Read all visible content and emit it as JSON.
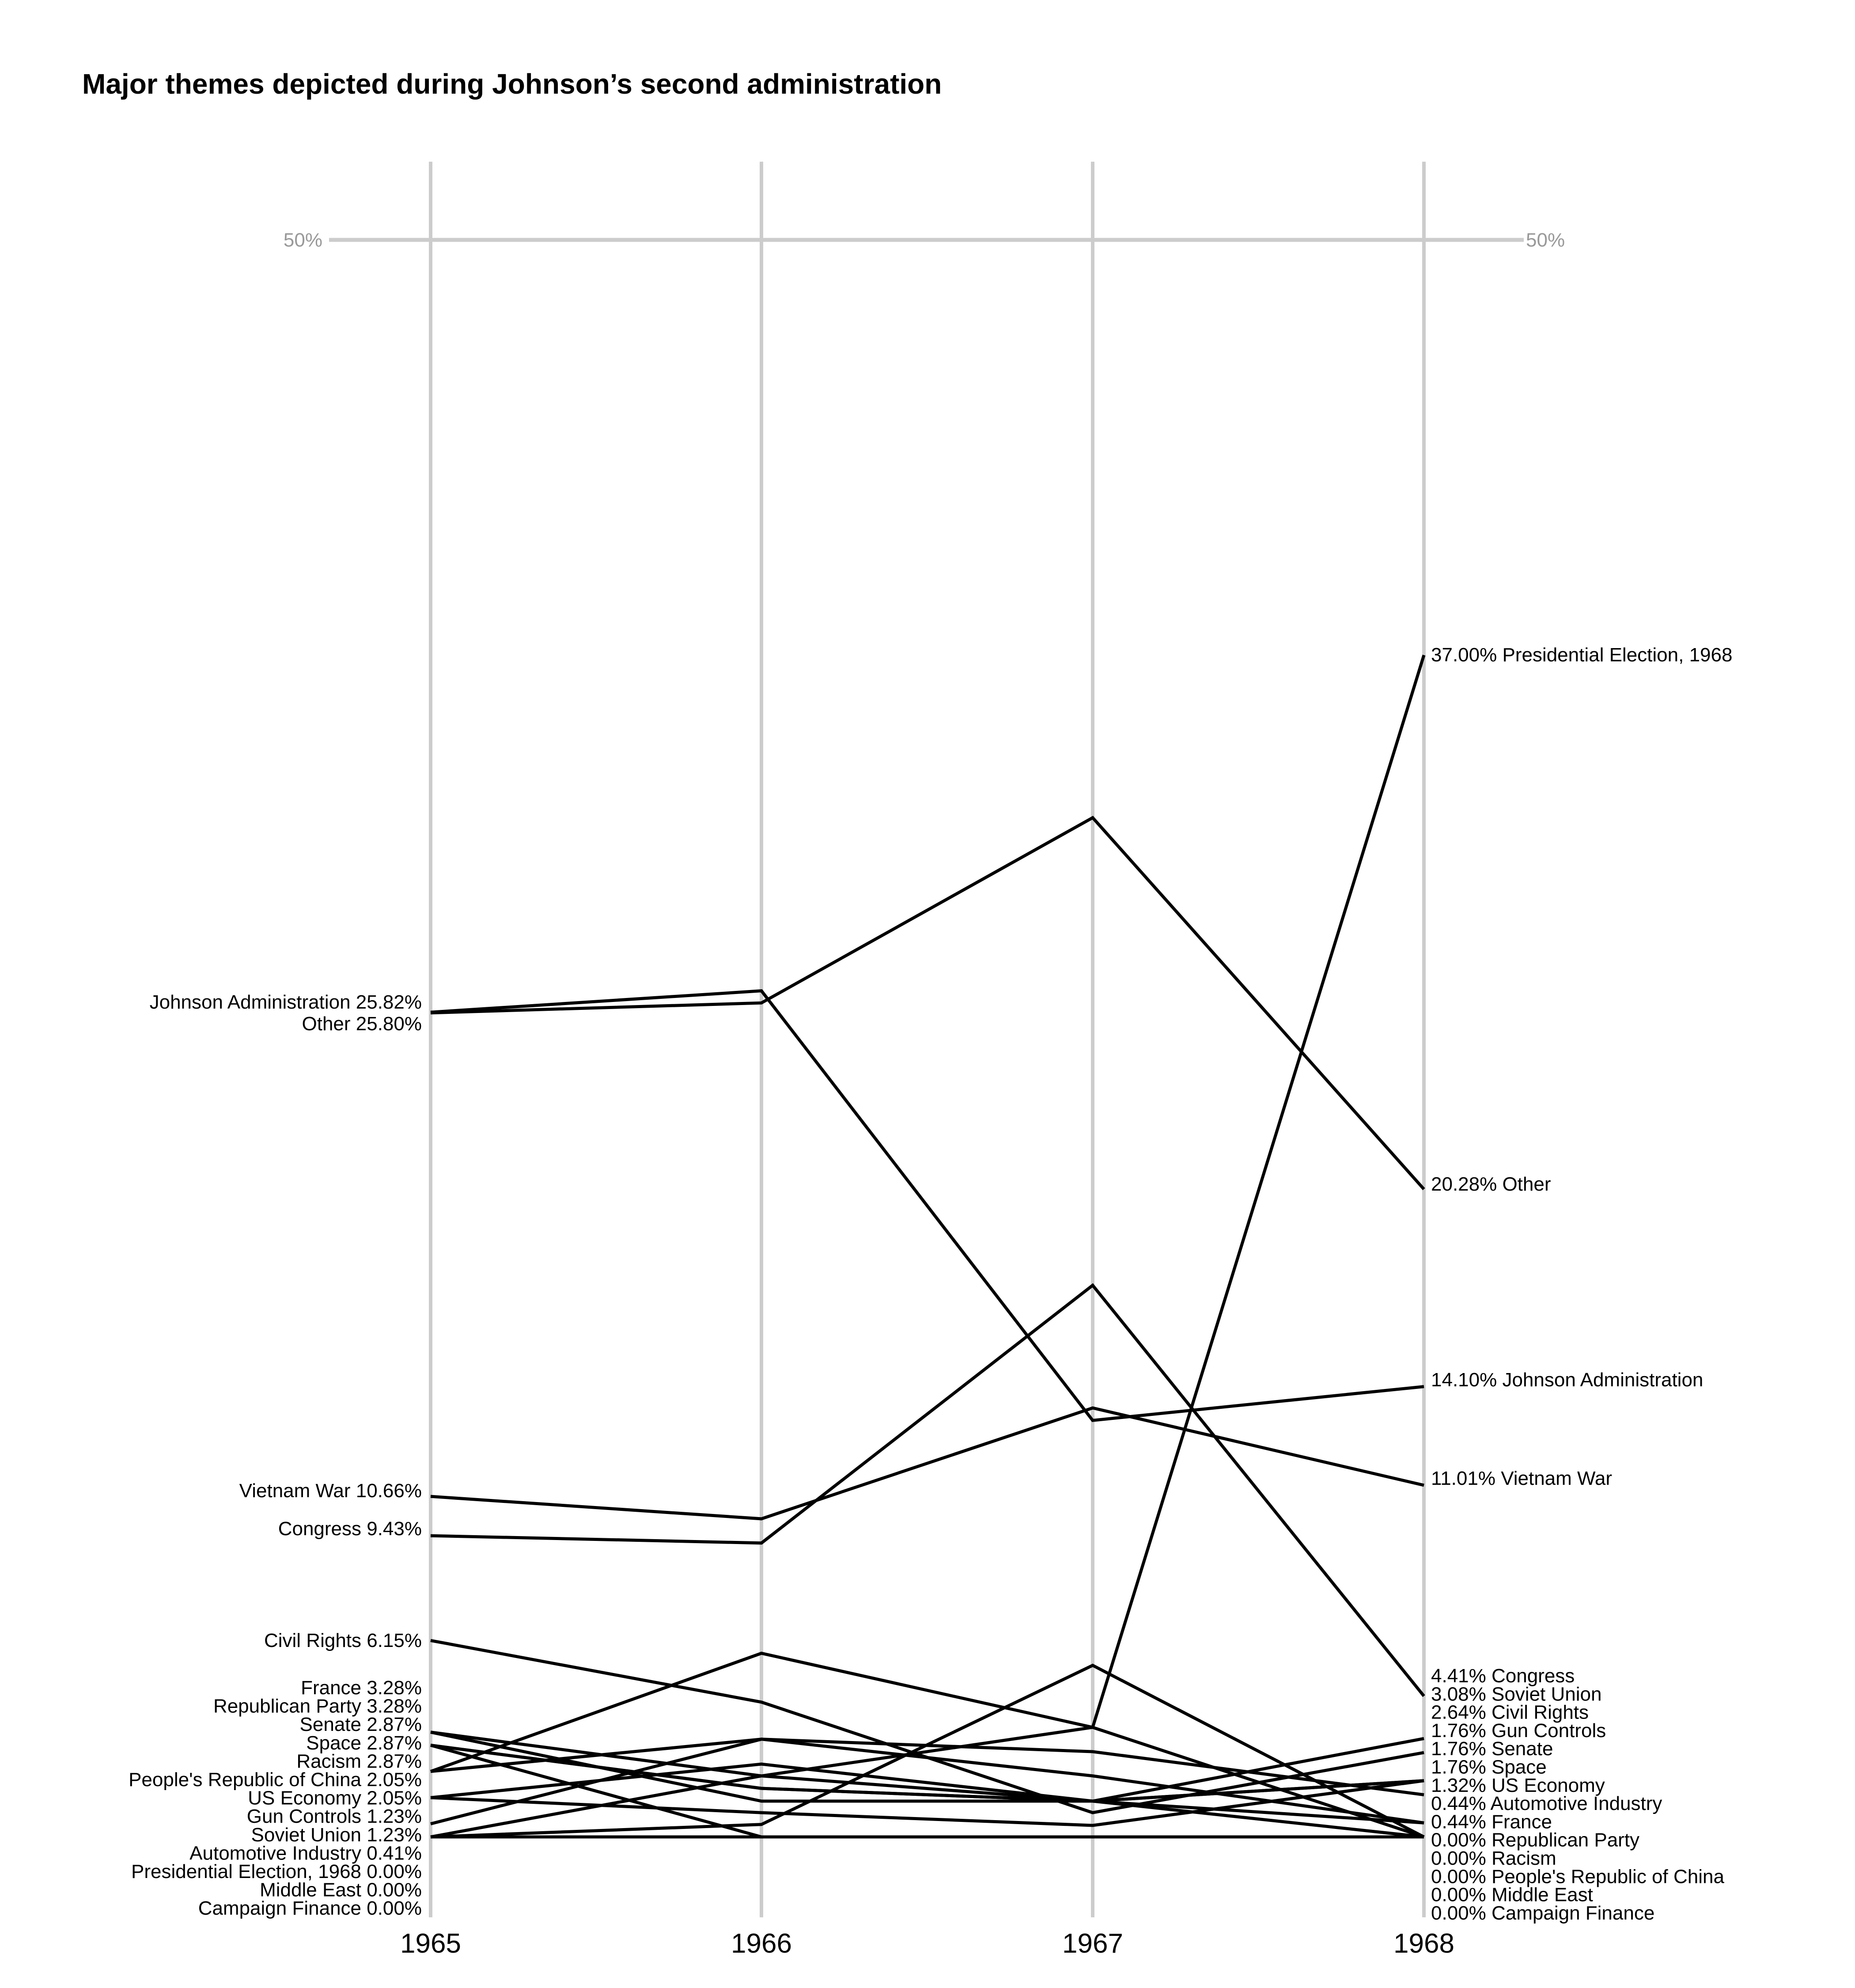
{
  "title": "Major themes depicted during Johnson’s second administration",
  "gridline": {
    "value": 50,
    "left_label": "50%",
    "right_label": "50%"
  },
  "colors": {
    "line": "#000000",
    "axis": "#cccccc",
    "grid_label": "#999999"
  },
  "chart_data": {
    "type": "line",
    "subtype": "slopegraph",
    "title": "Major themes depicted during Johnson’s second administration",
    "xlabel": "",
    "ylabel": "",
    "categories": [
      "1965",
      "1966",
      "1967",
      "1968"
    ],
    "ylim": [
      0,
      50
    ],
    "grid": {
      "horizontal": [
        50
      ]
    },
    "legend": "direct labels at first and last year",
    "series": [
      {
        "name": "Presidential Election, 1968",
        "values": [
          0.0,
          1.91,
          3.43,
          37.0
        ],
        "start_label": "Presidential Election, 1968 0.00%",
        "end_label": "37.00% Presidential Election, 1968"
      },
      {
        "name": "Other",
        "values": [
          25.8,
          26.11,
          31.91,
          20.28
        ],
        "start_label": "Other 25.80%",
        "end_label": "20.28% Other"
      },
      {
        "name": "Johnson Administration",
        "values": [
          25.82,
          26.49,
          13.04,
          14.1
        ],
        "start_label": "Johnson Administration 25.82%",
        "end_label": "14.10% Johnson Administration"
      },
      {
        "name": "Vietnam War",
        "values": [
          10.66,
          9.96,
          13.43,
          11.01
        ],
        "start_label": "Vietnam War 10.66%",
        "end_label": "11.01% Vietnam War"
      },
      {
        "name": "Congress",
        "values": [
          9.43,
          9.2,
          17.27,
          4.41
        ],
        "start_label": "Congress 9.43%",
        "end_label": "4.41% Congress"
      },
      {
        "name": "Soviet Union",
        "values": [
          1.23,
          2.28,
          1.12,
          3.08
        ],
        "start_label": "Soviet Union 1.23%",
        "end_label": "3.08% Soviet Union"
      },
      {
        "name": "Civil Rights",
        "values": [
          6.15,
          4.22,
          0.76,
          2.64
        ],
        "start_label": "Civil Rights 6.15%",
        "end_label": "2.64% Civil Rights"
      },
      {
        "name": "Gun Controls",
        "values": [
          1.23,
          0.76,
          0.36,
          1.76
        ],
        "start_label": "Gun Controls 1.23%",
        "end_label": "1.76% Gun Controls"
      },
      {
        "name": "Senate",
        "values": [
          2.87,
          1.52,
          1.12,
          1.76
        ],
        "start_label": "Senate 2.87%",
        "end_label": "1.76% Senate"
      },
      {
        "name": "Space",
        "values": [
          2.87,
          1.52,
          1.12,
          1.76
        ],
        "start_label": "Space 2.87%",
        "end_label": "1.76% Space"
      },
      {
        "name": "US Economy",
        "values": [
          2.05,
          3.06,
          2.67,
          1.32
        ],
        "start_label": "US Economy 2.05%",
        "end_label": "1.32% US Economy"
      },
      {
        "name": "Automotive Industry",
        "values": [
          0.41,
          3.06,
          1.91,
          0.44
        ],
        "start_label": "Automotive Industry 0.41%",
        "end_label": "0.44% Automotive Industry"
      },
      {
        "name": "France",
        "values": [
          3.28,
          1.12,
          1.12,
          0.44
        ],
        "start_label": "France 3.28%",
        "end_label": "0.44% France"
      },
      {
        "name": "Republican Party",
        "values": [
          3.28,
          1.91,
          1.12,
          0.0
        ],
        "start_label": "Republican Party 3.28%",
        "end_label": "0.00% Republican Party"
      },
      {
        "name": "Racism",
        "values": [
          2.87,
          0.0,
          0.0,
          0.0
        ],
        "start_label": "Racism 2.87%",
        "end_label": "0.00% Racism"
      },
      {
        "name": "People's Republic of China",
        "values": [
          2.05,
          5.75,
          3.43,
          0.0
        ],
        "start_label": "People's Republic of China 2.05%",
        "end_label": "0.00% People's Republic of China"
      },
      {
        "name": "Middle East",
        "values": [
          0.0,
          0.39,
          5.37,
          0.0
        ],
        "start_label": "Middle East 0.00%",
        "end_label": "0.00% Middle East"
      },
      {
        "name": "Campaign Finance",
        "values": [
          0.0,
          0.0,
          0.0,
          0.0
        ],
        "start_label": "Campaign Finance 0.00%",
        "end_label": "0.00% Campaign Finance"
      }
    ],
    "left_labels_order": [
      "Johnson Administration 25.82%",
      "Other 25.80%",
      "Vietnam War 10.66%",
      "Congress 9.43%",
      "Civil Rights 6.15%",
      "France 3.28%",
      "Republican Party 3.28%",
      "Senate 2.87%",
      "Space 2.87%",
      "Racism 2.87%",
      "People's Republic of China 2.05%",
      "US Economy 2.05%",
      "Gun Controls 1.23%",
      "Soviet Union 1.23%",
      "Automotive Industry 0.41%",
      "Presidential Election, 1968 0.00%",
      "Middle East 0.00%",
      "Campaign Finance 0.00%"
    ],
    "right_labels_order": [
      "37.00% Presidential Election, 1968",
      "20.28% Other",
      "14.10% Johnson Administration",
      "11.01% Vietnam War",
      "4.41% Congress",
      "3.08% Soviet Union",
      "2.64% Civil Rights",
      "1.76% Gun Controls",
      "1.76% Senate",
      "1.76% Space",
      "1.32% US Economy",
      "0.44% Automotive Industry",
      "0.44% France",
      "0.00% Republican Party",
      "0.00% Racism",
      "0.00% People's Republic of China",
      "0.00% Middle East",
      "0.00% Campaign Finance"
    ]
  }
}
